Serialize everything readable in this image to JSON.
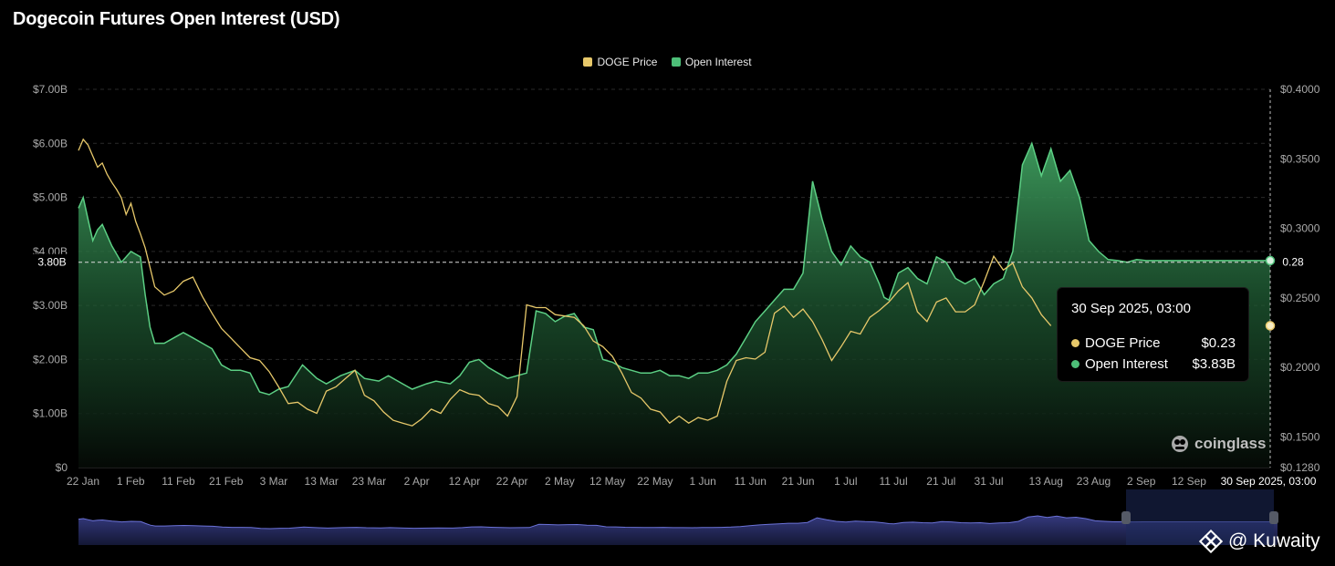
{
  "title": "Dogecoin Futures Open Interest (USD)",
  "legend": [
    {
      "name": "DOGE Price",
      "color": "#e7c86a"
    },
    {
      "name": "Open Interest",
      "color": "#4dbf78"
    }
  ],
  "crosshair": {
    "left_label": "3.80B",
    "right_label": "0.28"
  },
  "tooltip": {
    "title": "30 Sep 2025, 03:00",
    "rows": [
      {
        "label": "DOGE Price",
        "value": "$0.23",
        "color": "#e7c86a"
      },
      {
        "label": "Open Interest",
        "value": "$3.83B",
        "color": "#4dbf78"
      }
    ]
  },
  "x_highlight_label": "30 Sep 2025, 03:00",
  "branding": {
    "name": "coinglass",
    "icon": "coinglass-logo-icon"
  },
  "watermark": {
    "text": "@ Kuwaity",
    "icon": "binance-logo-icon"
  },
  "chart_data": {
    "type": "area",
    "title": "Dogecoin Futures Open Interest (USD)",
    "x_tick_labels": [
      "22 Jan",
      "1 Feb",
      "11 Feb",
      "21 Feb",
      "3 Mar",
      "13 Mar",
      "23 Mar",
      "2 Apr",
      "12 Apr",
      "22 Apr",
      "2 May",
      "12 May",
      "22 May",
      "1 Jun",
      "11 Jun",
      "21 Jun",
      "1 Jul",
      "11 Jul",
      "21 Jul",
      "31 Jul",
      "13 Aug",
      "23 Aug",
      "2 Sep",
      "12 Sep"
    ],
    "y_left": {
      "tick_labels": [
        "$0",
        "$1.00B",
        "$2.00B",
        "$3.00B",
        "$4.00B",
        "$5.00B",
        "$6.00B",
        "$7.00B"
      ],
      "range": [
        0,
        7.0
      ],
      "unit": "B USD"
    },
    "y_right": {
      "tick_labels": [
        "$0.1280",
        "$0.1500",
        "$0.2000",
        "$0.2500",
        "$0.3000",
        "$0.3500",
        "$0.4000"
      ],
      "range": [
        0.128,
        0.4
      ],
      "unit": "USD"
    },
    "grid": true,
    "legend_position": "top-center",
    "series": [
      {
        "name": "Open Interest",
        "axis": "left",
        "type": "area",
        "color": "#4dbf78",
        "x_days": [
          0,
          1,
          2,
          3,
          4,
          5,
          7,
          9,
          11,
          13,
          14,
          15,
          16,
          18,
          20,
          22,
          24,
          26,
          28,
          30,
          32,
          34,
          36,
          38,
          40,
          42,
          44,
          47,
          50,
          52,
          55,
          58,
          60,
          63,
          65,
          68,
          70,
          73,
          75,
          78,
          80,
          82,
          84,
          86,
          88,
          90,
          92,
          94,
          96,
          98,
          100,
          102,
          104,
          106,
          108,
          110,
          112,
          114,
          116,
          118,
          120,
          122,
          124,
          126,
          128,
          130,
          132,
          134,
          136,
          138,
          140,
          142,
          144,
          146,
          148,
          150,
          152,
          154,
          156,
          158,
          160,
          162,
          164,
          166,
          168,
          169,
          170,
          171,
          172,
          174,
          176,
          178,
          180,
          182,
          184,
          186,
          188,
          190,
          192,
          194,
          196,
          198,
          200,
          202,
          204,
          206,
          208,
          210,
          212,
          214,
          216,
          218,
          220,
          222,
          224,
          226,
          228,
          230,
          232,
          234,
          236,
          238,
          240,
          242,
          244,
          246,
          248,
          250
        ],
        "values": [
          4.8,
          5.0,
          4.6,
          4.2,
          4.4,
          4.5,
          4.1,
          3.8,
          4.0,
          3.9,
          3.2,
          2.6,
          2.3,
          2.3,
          2.4,
          2.5,
          2.4,
          2.3,
          2.2,
          1.9,
          1.8,
          1.8,
          1.75,
          1.4,
          1.35,
          1.45,
          1.5,
          1.9,
          1.65,
          1.55,
          1.7,
          1.8,
          1.65,
          1.6,
          1.7,
          1.55,
          1.45,
          1.55,
          1.6,
          1.55,
          1.7,
          1.95,
          2.0,
          1.85,
          1.75,
          1.65,
          1.7,
          1.75,
          2.9,
          2.85,
          2.7,
          2.8,
          2.85,
          2.6,
          2.55,
          2.0,
          1.95,
          1.85,
          1.8,
          1.75,
          1.75,
          1.8,
          1.7,
          1.7,
          1.65,
          1.75,
          1.75,
          1.8,
          1.9,
          2.1,
          2.4,
          2.7,
          2.9,
          3.1,
          3.3,
          3.3,
          3.6,
          5.3,
          4.6,
          4.0,
          3.75,
          4.1,
          3.9,
          3.8,
          3.4,
          3.15,
          3.1,
          3.35,
          3.6,
          3.7,
          3.5,
          3.4,
          3.9,
          3.8,
          3.5,
          3.4,
          3.5,
          3.2,
          3.4,
          3.5,
          4.0,
          5.6,
          6.0,
          5.4,
          5.9,
          5.3,
          5.5,
          5.0,
          4.2,
          4.0,
          3.85,
          3.83,
          3.8,
          3.85,
          3.83,
          3.83,
          3.83,
          3.83,
          3.83,
          3.83,
          3.83,
          3.83,
          3.83,
          3.83,
          3.83,
          3.83,
          3.83,
          3.83
        ]
      },
      {
        "name": "DOGE Price",
        "axis": "right",
        "type": "line",
        "color": "#e7c86a",
        "x_days": [
          0,
          1,
          2,
          3,
          4,
          5,
          6,
          7,
          8,
          9,
          10,
          11,
          12,
          13,
          14,
          15,
          16,
          18,
          20,
          22,
          24,
          26,
          28,
          30,
          32,
          34,
          36,
          38,
          40,
          42,
          44,
          46,
          48,
          50,
          52,
          54,
          56,
          58,
          60,
          62,
          64,
          66,
          68,
          70,
          72,
          74,
          76,
          78,
          80,
          82,
          84,
          86,
          88,
          90,
          92,
          94,
          96,
          98,
          100,
          102,
          104,
          106,
          108,
          110,
          112,
          114,
          116,
          118,
          120,
          122,
          124,
          126,
          128,
          130,
          132,
          134,
          136,
          138,
          140,
          142,
          144,
          146,
          148,
          150,
          152,
          154,
          156,
          158,
          160,
          162,
          164,
          166,
          168,
          170,
          172,
          174,
          176,
          178,
          180,
          182,
          184,
          186,
          188,
          190,
          192,
          194,
          196,
          198,
          200,
          202,
          204
        ],
        "values": [
          0.356,
          0.364,
          0.36,
          0.352,
          0.344,
          0.347,
          0.339,
          0.333,
          0.328,
          0.322,
          0.31,
          0.318,
          0.305,
          0.296,
          0.286,
          0.272,
          0.258,
          0.252,
          0.255,
          0.262,
          0.265,
          0.251,
          0.239,
          0.228,
          0.221,
          0.214,
          0.207,
          0.205,
          0.197,
          0.186,
          0.174,
          0.175,
          0.17,
          0.167,
          0.183,
          0.186,
          0.192,
          0.198,
          0.18,
          0.176,
          0.168,
          0.162,
          0.16,
          0.158,
          0.163,
          0.17,
          0.167,
          0.177,
          0.184,
          0.181,
          0.18,
          0.174,
          0.172,
          0.165,
          0.179,
          0.245,
          0.243,
          0.243,
          0.238,
          0.237,
          0.236,
          0.23,
          0.219,
          0.215,
          0.208,
          0.196,
          0.182,
          0.178,
          0.17,
          0.168,
          0.16,
          0.165,
          0.16,
          0.164,
          0.162,
          0.165,
          0.19,
          0.205,
          0.207,
          0.206,
          0.211,
          0.239,
          0.244,
          0.236,
          0.242,
          0.233,
          0.22,
          0.205,
          0.215,
          0.226,
          0.224,
          0.236,
          0.241,
          0.247,
          0.255,
          0.261,
          0.24,
          0.233,
          0.247,
          0.25,
          0.24,
          0.24,
          0.245,
          0.262,
          0.28,
          0.27,
          0.275,
          0.258,
          0.25,
          0.238,
          0.23
        ]
      }
    ]
  }
}
